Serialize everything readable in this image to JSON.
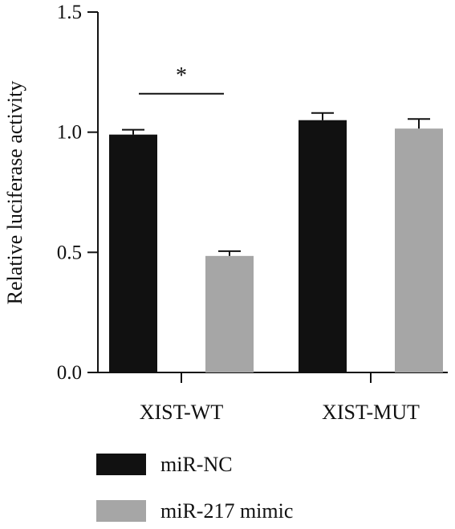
{
  "chart_data": {
    "type": "bar",
    "title": "",
    "xlabel": "",
    "ylabel": "Relative luciferase activity",
    "ylim": [
      0,
      1.5
    ],
    "yticks": [
      "0.0",
      "0.5",
      "1.0",
      "1.5"
    ],
    "categories": [
      "XIST-WT",
      "XIST-MUT"
    ],
    "series": [
      {
        "name": "miR-NC",
        "values": [
          0.99,
          1.05
        ],
        "errors": [
          0.02,
          0.03
        ],
        "color": "#111111"
      },
      {
        "name": "miR-217 mimic",
        "values": [
          0.485,
          1.015
        ],
        "errors": [
          0.02,
          0.04
        ],
        "color": "#a6a6a6"
      }
    ],
    "annotations": [
      {
        "text": "*",
        "category": "XIST-WT",
        "between_series": [
          "miR-NC",
          "miR-217 mimic"
        ],
        "y": 1.16
      }
    ],
    "grid": false,
    "legend_position": "bottom"
  }
}
